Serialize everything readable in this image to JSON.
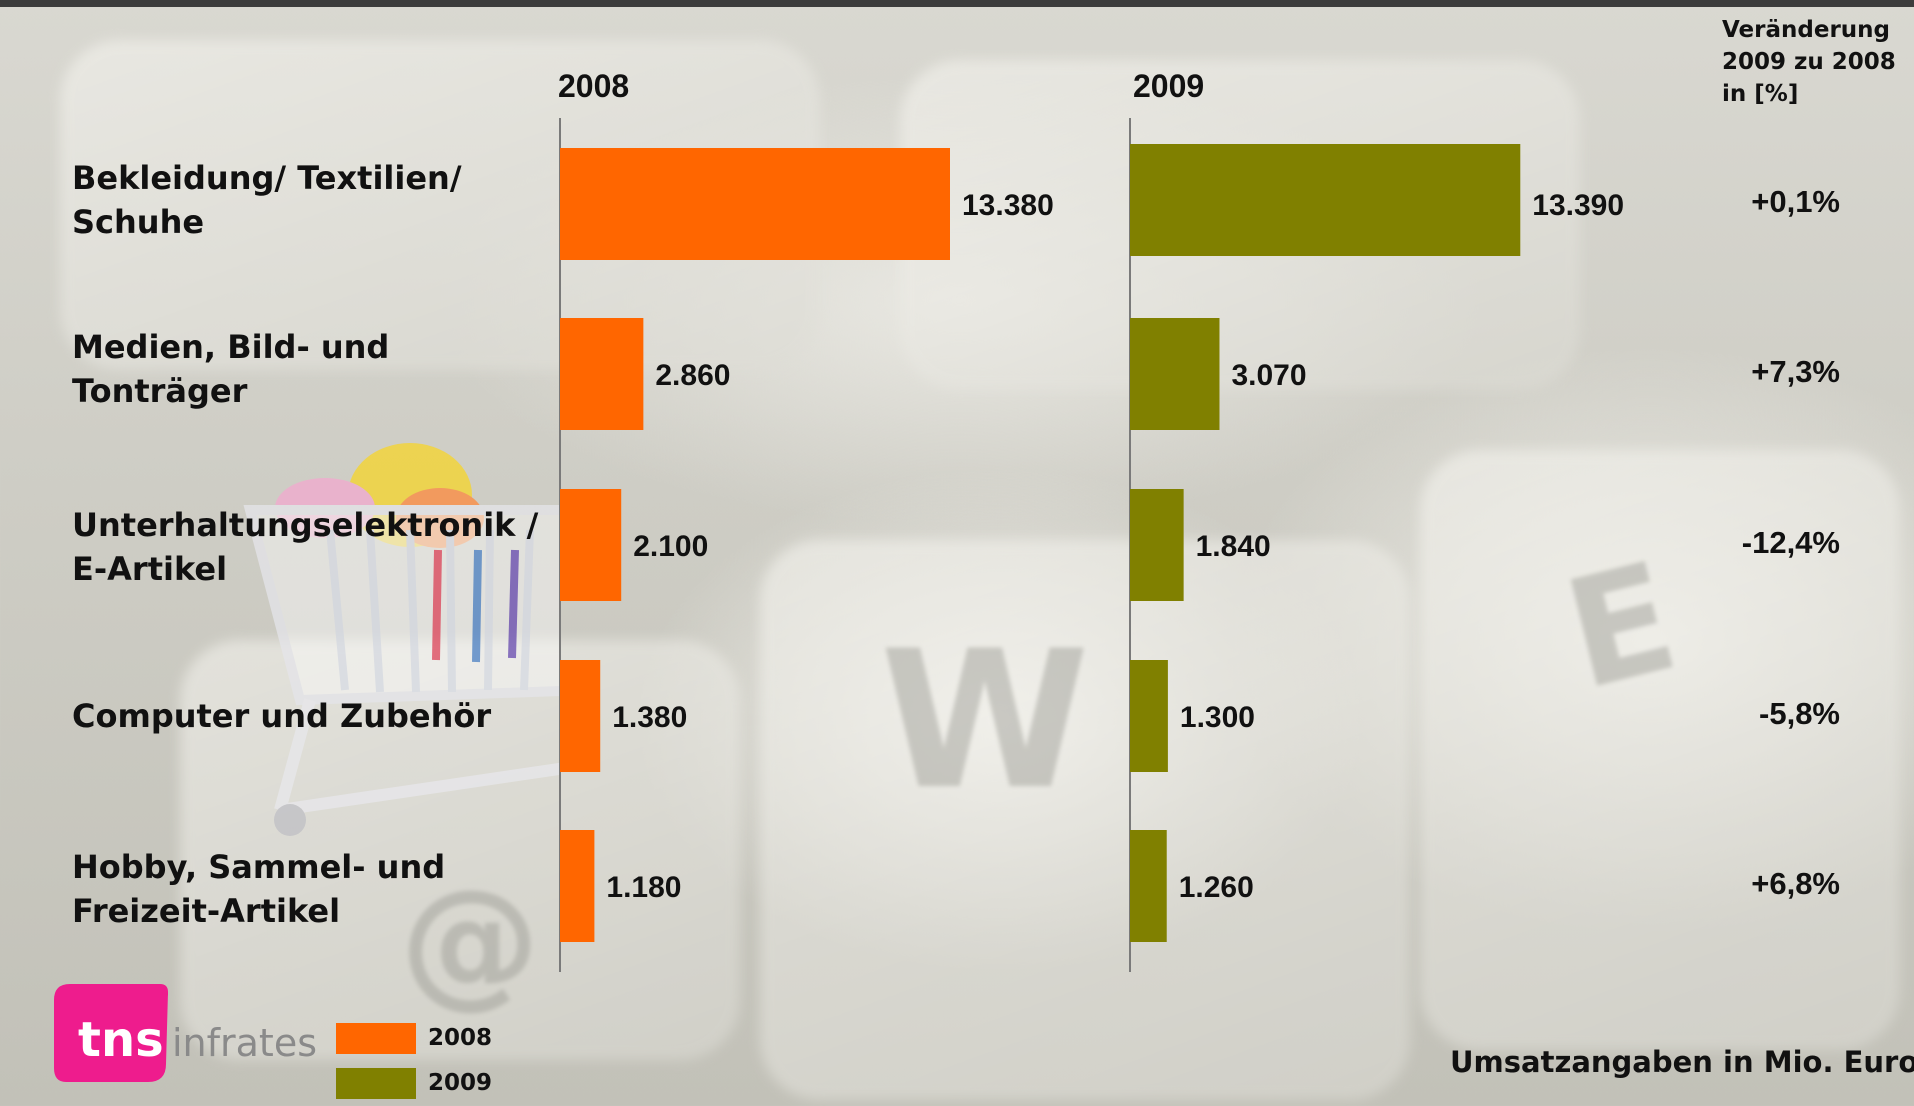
{
  "chart_data": {
    "type": "bar",
    "orientation": "horizontal",
    "categories": [
      [
        "Bekleidung/ Textilien/",
        "Schuhe"
      ],
      [
        "Medien, Bild- und",
        "Tonträger"
      ],
      [
        "Unterhaltungselektronik /",
        "E-Artikel"
      ],
      [
        "Computer und Zubehör"
      ],
      [
        "Hobby, Sammel- und",
        "Freizeit-Artikel"
      ]
    ],
    "series": [
      {
        "name": "2008",
        "color": "#ff6600",
        "values": [
          13380,
          2860,
          2100,
          1380,
          1180
        ],
        "labels": [
          "13.380",
          "2.860",
          "2.100",
          "1.380",
          "1.180"
        ]
      },
      {
        "name": "2009",
        "color": "#808000",
        "values": [
          13390,
          3070,
          1840,
          1300,
          1260
        ],
        "labels": [
          "13.390",
          "3.070",
          "1.840",
          "1.300",
          "1.260"
        ]
      }
    ],
    "change_header": [
      "Veränderung",
      "2009 zu 2008",
      "in [%]"
    ],
    "change": [
      "+0,1%",
      "+7,3%",
      "-12,4%",
      "-5,8%",
      "+6,8%"
    ],
    "unit_note": "Umsatzangaben in Mio. Euro"
  },
  "legend": [
    {
      "label": "2008",
      "color": "#ff6600"
    },
    {
      "label": "2009",
      "color": "#808000"
    }
  ],
  "logo": {
    "main": "tns",
    "sub": "infratest",
    "tm": "™",
    "color": "#ee1c8d"
  }
}
